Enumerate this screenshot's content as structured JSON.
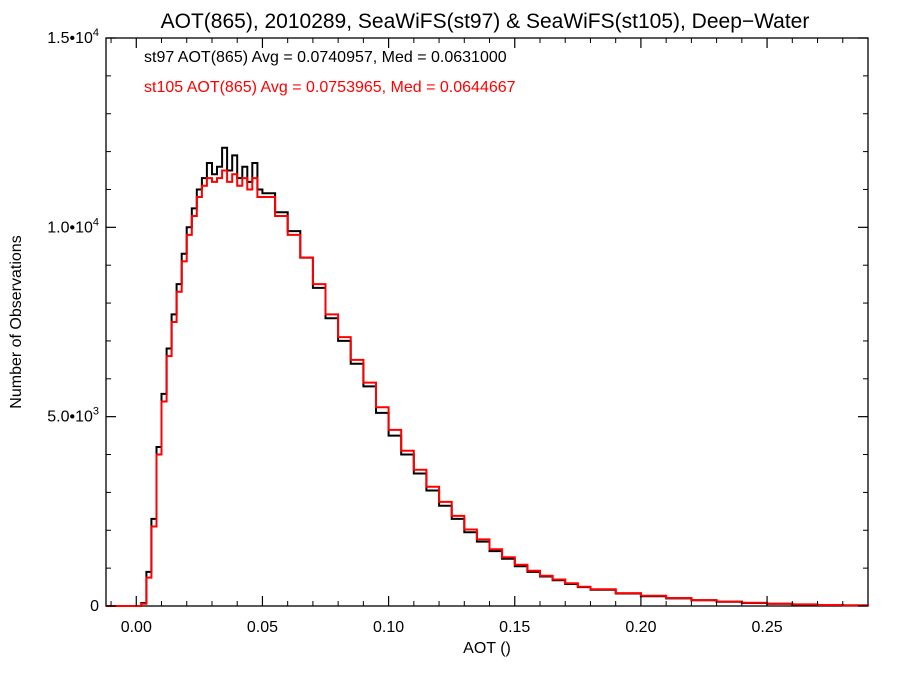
{
  "chart_data": {
    "type": "line",
    "title": "AOT(865), 2010289, SeaWiFS(st97) & SeaWiFS(st105), Deep−Water",
    "xlabel": "AOT ()",
    "ylabel": "Number of Observations",
    "xlim": [
      -0.012,
      0.29
    ],
    "ylim": [
      0,
      15000
    ],
    "x_ticks": [
      0.0,
      0.05,
      0.1,
      0.15,
      0.2,
      0.25
    ],
    "x_tick_labels": [
      "0.00",
      "0.05",
      "0.10",
      "0.15",
      "0.20",
      "0.25"
    ],
    "y_ticks": [
      {
        "value": 0,
        "mantissa": "0",
        "exp": ""
      },
      {
        "value": 5000,
        "mantissa": "5.0•10",
        "exp": "3"
      },
      {
        "value": 10000,
        "mantissa": "1.0•10",
        "exp": "4"
      },
      {
        "value": 15000,
        "mantissa": "1.5•10",
        "exp": "4"
      }
    ],
    "annotations": [
      {
        "text": "st97 AOT(865) Avg = 0.0740957, Med = 0.0631000",
        "color": "#000000"
      },
      {
        "text": "st105 AOT(865) Avg = 0.0753965, Med = 0.0644667",
        "color": "#ff0000"
      }
    ],
    "series": [
      {
        "color": "#000000",
        "step": "histogram",
        "x": [
          -0.012,
          0.0,
          0.002,
          0.004,
          0.006,
          0.008,
          0.01,
          0.012,
          0.014,
          0.016,
          0.018,
          0.02,
          0.022,
          0.024,
          0.026,
          0.028,
          0.03,
          0.032,
          0.034,
          0.036,
          0.038,
          0.04,
          0.042,
          0.044,
          0.046,
          0.048,
          0.05,
          0.055,
          0.06,
          0.065,
          0.07,
          0.075,
          0.08,
          0.085,
          0.09,
          0.095,
          0.1,
          0.105,
          0.11,
          0.115,
          0.12,
          0.125,
          0.13,
          0.135,
          0.14,
          0.145,
          0.15,
          0.155,
          0.16,
          0.165,
          0.17,
          0.175,
          0.18,
          0.19,
          0.2,
          0.21,
          0.22,
          0.23,
          0.24,
          0.25,
          0.26,
          0.27,
          0.28,
          0.29
        ],
        "y": [
          0,
          0,
          80,
          900,
          2300,
          4200,
          5600,
          6800,
          7700,
          8500,
          9300,
          10000,
          10500,
          11000,
          11300,
          11700,
          11400,
          11600,
          12100,
          11500,
          11900,
          11300,
          11600,
          11200,
          11700,
          11000,
          10900,
          10400,
          9900,
          9200,
          8400,
          7600,
          7000,
          6400,
          5800,
          5100,
          4500,
          4000,
          3500,
          3050,
          2650,
          2300,
          1950,
          1700,
          1450,
          1250,
          1050,
          900,
          780,
          680,
          580,
          500,
          430,
          330,
          260,
          200,
          150,
          110,
          80,
          60,
          40,
          25,
          15,
          5
        ]
      },
      {
        "color": "#ff0000",
        "step": "histogram",
        "x": [
          -0.012,
          0.0,
          0.002,
          0.004,
          0.006,
          0.008,
          0.01,
          0.012,
          0.014,
          0.016,
          0.018,
          0.02,
          0.022,
          0.024,
          0.026,
          0.028,
          0.03,
          0.032,
          0.034,
          0.036,
          0.038,
          0.04,
          0.042,
          0.044,
          0.046,
          0.048,
          0.05,
          0.055,
          0.06,
          0.065,
          0.07,
          0.075,
          0.08,
          0.085,
          0.09,
          0.095,
          0.1,
          0.105,
          0.11,
          0.115,
          0.12,
          0.125,
          0.13,
          0.135,
          0.14,
          0.145,
          0.15,
          0.155,
          0.16,
          0.165,
          0.17,
          0.175,
          0.18,
          0.19,
          0.2,
          0.21,
          0.22,
          0.23,
          0.24,
          0.25,
          0.26,
          0.27,
          0.28,
          0.29
        ],
        "y": [
          0,
          0,
          60,
          750,
          2100,
          4000,
          5400,
          6600,
          7500,
          8300,
          9100,
          9800,
          10300,
          10800,
          11100,
          11300,
          11200,
          11300,
          11500,
          11200,
          11400,
          11100,
          11300,
          11000,
          11300,
          10800,
          10800,
          10300,
          9800,
          9200,
          8500,
          7700,
          7100,
          6500,
          5900,
          5250,
          4650,
          4100,
          3600,
          3150,
          2750,
          2380,
          2020,
          1760,
          1500,
          1290,
          1090,
          930,
          800,
          700,
          600,
          510,
          440,
          340,
          270,
          210,
          155,
          115,
          85,
          62,
          42,
          26,
          16,
          5
        ]
      }
    ]
  }
}
